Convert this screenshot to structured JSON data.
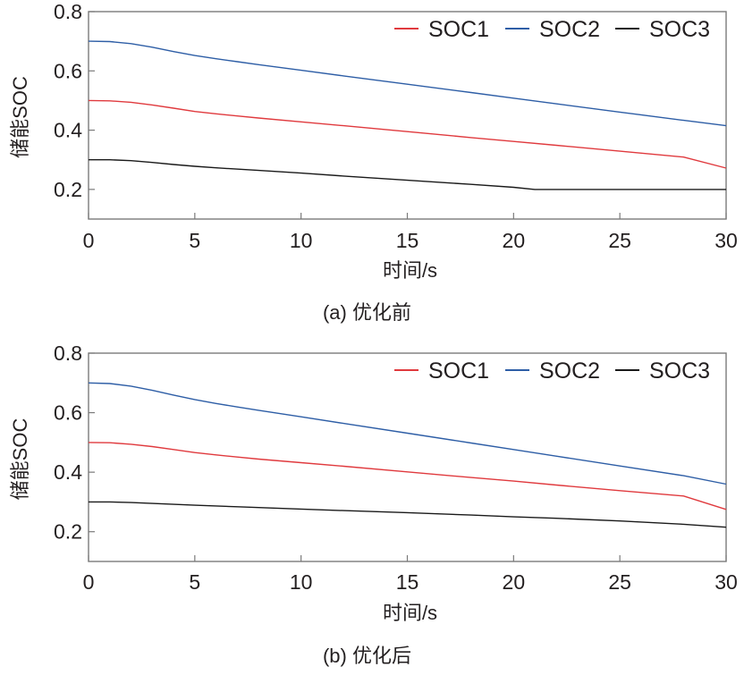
{
  "chart_data": [
    {
      "type": "line",
      "caption": "(a) 优化前",
      "xlabel": "时间/s",
      "ylabel": "储能SOC",
      "xlim": [
        0,
        30
      ],
      "ylim": [
        0.1,
        0.8
      ],
      "xticks": [
        0,
        5,
        10,
        15,
        20,
        25,
        30
      ],
      "yticks": [
        0.2,
        0.4,
        0.6,
        0.8
      ],
      "xtick_labels": [
        "0",
        "5",
        "10",
        "15",
        "20",
        "25",
        "30"
      ],
      "ytick_labels": [
        "0.2",
        "0.4",
        "0.6",
        "0.8"
      ],
      "grid": false,
      "legend_position": "top-right",
      "series": [
        {
          "name": "SOC1",
          "color": "#e03a3e",
          "x": [
            0,
            1,
            2,
            3,
            4,
            5,
            6,
            7,
            8,
            10,
            12,
            15,
            18,
            20,
            22,
            25,
            28,
            30
          ],
          "y": [
            0.5,
            0.499,
            0.494,
            0.485,
            0.474,
            0.463,
            0.455,
            0.448,
            0.441,
            0.428,
            0.415,
            0.395,
            0.375,
            0.362,
            0.349,
            0.329,
            0.309,
            0.272
          ]
        },
        {
          "name": "SOC2",
          "color": "#2e5ea6",
          "x": [
            0,
            1,
            2,
            3,
            4,
            5,
            6,
            7,
            8,
            10,
            12,
            15,
            18,
            20,
            22,
            25,
            28,
            30
          ],
          "y": [
            0.7,
            0.699,
            0.692,
            0.68,
            0.665,
            0.652,
            0.641,
            0.631,
            0.621,
            0.602,
            0.583,
            0.555,
            0.527,
            0.508,
            0.489,
            0.461,
            0.433,
            0.415
          ]
        },
        {
          "name": "SOC3",
          "color": "#1a1a1a",
          "x": [
            0,
            1,
            2,
            3,
            4,
            5,
            6,
            8,
            10,
            12,
            15,
            18,
            20,
            21,
            25,
            30
          ],
          "y": [
            0.3,
            0.3,
            0.297,
            0.291,
            0.284,
            0.278,
            0.273,
            0.264,
            0.255,
            0.245,
            0.231,
            0.217,
            0.207,
            0.2,
            0.2,
            0.2
          ]
        }
      ]
    },
    {
      "type": "line",
      "caption": "(b) 优化后",
      "xlabel": "时间/s",
      "ylabel": "储能SOC",
      "xlim": [
        0,
        30
      ],
      "ylim": [
        0.1,
        0.8
      ],
      "xticks": [
        0,
        5,
        10,
        15,
        20,
        25,
        30
      ],
      "yticks": [
        0.2,
        0.4,
        0.6,
        0.8
      ],
      "xtick_labels": [
        "0",
        "5",
        "10",
        "15",
        "20",
        "25",
        "30"
      ],
      "ytick_labels": [
        "0.2",
        "0.4",
        "0.6",
        "0.8"
      ],
      "grid": false,
      "legend_position": "top-right",
      "series": [
        {
          "name": "SOC1",
          "color": "#e03a3e",
          "x": [
            0,
            1,
            2,
            3,
            4,
            5,
            6,
            7,
            8,
            10,
            12,
            15,
            18,
            20,
            22,
            25,
            28,
            30
          ],
          "y": [
            0.5,
            0.499,
            0.494,
            0.486,
            0.476,
            0.466,
            0.458,
            0.451,
            0.444,
            0.432,
            0.42,
            0.401,
            0.382,
            0.37,
            0.357,
            0.338,
            0.32,
            0.275
          ]
        },
        {
          "name": "SOC2",
          "color": "#2e5ea6",
          "x": [
            0,
            1,
            2,
            3,
            4,
            5,
            6,
            7,
            8,
            10,
            12,
            15,
            18,
            20,
            22,
            25,
            28,
            30
          ],
          "y": [
            0.7,
            0.698,
            0.689,
            0.675,
            0.659,
            0.644,
            0.631,
            0.619,
            0.608,
            0.586,
            0.564,
            0.531,
            0.498,
            0.476,
            0.454,
            0.421,
            0.388,
            0.36
          ]
        },
        {
          "name": "SOC3",
          "color": "#1a1a1a",
          "x": [
            0,
            1,
            2,
            3,
            5,
            7,
            10,
            12,
            15,
            18,
            20,
            22,
            25,
            28,
            30
          ],
          "y": [
            0.3,
            0.3,
            0.298,
            0.295,
            0.289,
            0.284,
            0.276,
            0.271,
            0.264,
            0.256,
            0.25,
            0.245,
            0.236,
            0.225,
            0.215
          ]
        }
      ]
    }
  ]
}
